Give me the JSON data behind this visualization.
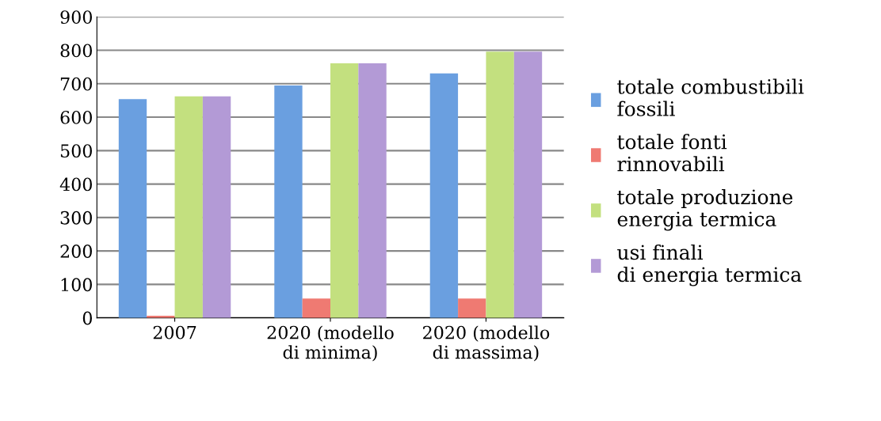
{
  "chart_data": {
    "type": "bar",
    "categories": [
      "2007",
      "2020 (modello di minima)",
      "2020 (modello di massima)"
    ],
    "series": [
      {
        "name": "totale combustibili fossili",
        "color": "#6a9fe0",
        "values": [
          654,
          695,
          731
        ]
      },
      {
        "name": "totale fonti rinnovabili",
        "color": "#ef7a72",
        "values": [
          6,
          58,
          58
        ]
      },
      {
        "name": "totale produzione energia termica",
        "color": "#c3e07f",
        "values": [
          662,
          761,
          796
        ]
      },
      {
        "name": "usi finali di energia termica",
        "color": "#b39ad6",
        "values": [
          662,
          761,
          796
        ]
      }
    ],
    "ylim": [
      0,
      900
    ],
    "yticks": [
      0,
      100,
      200,
      300,
      400,
      500,
      600,
      700,
      800,
      900
    ],
    "grid": "y",
    "legend": "right"
  }
}
